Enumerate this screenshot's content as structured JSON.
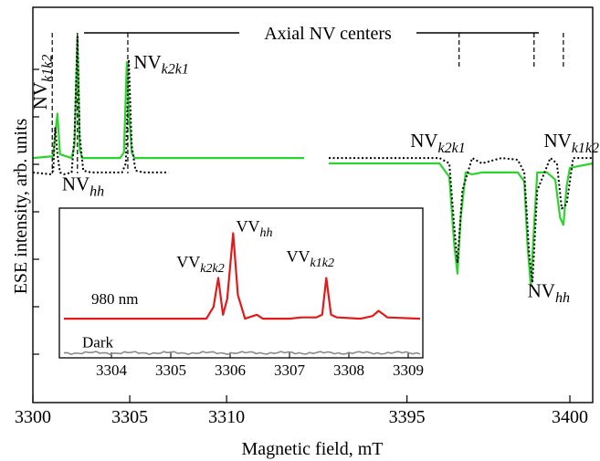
{
  "chart_data": [
    {
      "type": "line",
      "xlabel": "Magnetic field, mT",
      "ylabel": "ESE intensity, arb. units",
      "x_axis": {
        "broken": true,
        "segments": [
          {
            "xlim": [
              3300,
              3314
            ],
            "ticks": [
              3300,
              3305,
              3310
            ],
            "tick_labels": [
              "3300",
              "3305",
              "3310"
            ]
          },
          {
            "xlim": [
              3392.6,
              3400.7
            ],
            "ticks": [
              3395,
              3400
            ],
            "tick_labels": [
              "3395",
              "3400"
            ]
          }
        ]
      },
      "ylim": [
        -1.5,
        2.3
      ],
      "grid": false,
      "header_label": "Axial NV centers",
      "stick_positions": [
        3301.0,
        3302.3,
        3304.9,
        3396.6,
        3398.9,
        3399.8
      ],
      "series": [
        {
          "color": "#2ed32e",
          "style": "solid",
          "segment1_x": [
            3300.0,
            3301.05,
            3301.15,
            3301.27,
            3301.4,
            3302.0,
            3302.15,
            3302.3,
            3302.42,
            3302.55,
            3303.0,
            3304.5,
            3304.7,
            3304.85,
            3304.95,
            3305.1,
            3305.25,
            3305.5,
            3306.5,
            3308.0,
            3310.0,
            3312.0,
            3314.0
          ],
          "segment1_y": [
            0.06,
            0.08,
            0.32,
            0.55,
            0.1,
            0.06,
            0.2,
            1.4,
            0.15,
            0.06,
            0.06,
            0.06,
            0.12,
            1.12,
            0.6,
            0.12,
            0.06,
            0.06,
            0.06,
            0.06,
            0.06,
            0.06,
            0.06
          ],
          "segment2_x": [
            3392.6,
            3394.0,
            3396.0,
            3396.3,
            3396.45,
            3396.55,
            3396.65,
            3396.8,
            3397.0,
            3397.3,
            3397.9,
            3398.4,
            3398.6,
            3398.7,
            3398.8,
            3398.9,
            3399.0,
            3399.3,
            3399.55,
            3399.7,
            3399.8,
            3399.9,
            3400.0,
            3400.7
          ],
          "segment2_y": [
            0.0,
            0.0,
            0.0,
            -0.15,
            -0.9,
            -1.22,
            -0.6,
            -0.1,
            -0.12,
            -0.1,
            -0.1,
            -0.1,
            -0.2,
            -0.9,
            -1.35,
            -0.7,
            -0.1,
            -0.1,
            -0.18,
            -0.6,
            -0.68,
            -0.25,
            -0.05,
            0.0
          ]
        },
        {
          "color": "#000000",
          "style": "dotted",
          "segment1_x": [
            3300.0,
            3300.9,
            3301.05,
            3301.15,
            3301.27,
            3301.4,
            3301.6,
            3302.0,
            3302.15,
            3302.3,
            3302.42,
            3302.6,
            3303.0,
            3304.6,
            3304.8,
            3304.95,
            3305.1,
            3305.3,
            3305.7,
            3306.3,
            3307.0
          ],
          "segment1_y": [
            -0.1,
            -0.12,
            -0.08,
            0.4,
            0.1,
            -0.1,
            -0.12,
            -0.1,
            0.3,
            1.4,
            0.3,
            -0.08,
            -0.1,
            -0.1,
            0.0,
            1.15,
            0.2,
            -0.08,
            -0.1,
            -0.1,
            -0.1
          ],
          "segment2_x": [
            3392.6,
            3395.0,
            3396.0,
            3396.3,
            3396.45,
            3396.55,
            3396.7,
            3397.0,
            3397.3,
            3397.9,
            3398.4,
            3398.6,
            3398.75,
            3398.85,
            3399.0,
            3399.4,
            3399.6,
            3399.75,
            3399.9,
            3400.1,
            3400.7
          ],
          "segment2_y": [
            0.06,
            0.06,
            0.06,
            0.0,
            -0.7,
            -1.1,
            -0.3,
            0.06,
            0.0,
            0.06,
            0.04,
            -0.1,
            -1.0,
            -1.32,
            -0.3,
            0.06,
            0.0,
            -0.5,
            -0.45,
            0.06,
            0.06
          ]
        }
      ],
      "annotations": [
        {
          "base": "NV",
          "sub": "k1k2",
          "x": 3300.7,
          "y": 0.9,
          "rotated": true
        },
        {
          "base": "NV",
          "sub": "k2k1",
          "x": 3305.2,
          "y": 1.05
        },
        {
          "base": "NV",
          "sub": "hh",
          "x": 3301.5,
          "y": -0.3
        },
        {
          "base": "NV",
          "sub": "k2k1",
          "x": 3395.1,
          "y": 0.18
        },
        {
          "base": "NV",
          "sub": "k1k2",
          "x": 3399.2,
          "y": 0.18
        },
        {
          "base": "NV",
          "sub": "hh",
          "x": 3398.7,
          "y": -1.48
        }
      ]
    },
    {
      "type": "line",
      "inset": true,
      "xlim": [
        3303.2,
        3309.2
      ],
      "ylim": [
        -0.2,
        1.0
      ],
      "x_ticks": [
        3304,
        3305,
        3306,
        3307,
        3308,
        3309
      ],
      "x_tick_labels": [
        "3304",
        "3305",
        "3306",
        "3307",
        "3308",
        "3309"
      ],
      "series": [
        {
          "name": "980 nm",
          "color": "#e21a1a",
          "x": [
            3303.2,
            3303.8,
            3304.5,
            3305.2,
            3305.6,
            3305.72,
            3305.8,
            3305.88,
            3305.95,
            3306.05,
            3306.13,
            3306.25,
            3306.45,
            3306.55,
            3306.7,
            3307.0,
            3307.2,
            3307.45,
            3307.55,
            3307.62,
            3307.7,
            3307.8,
            3308.2,
            3308.4,
            3308.5,
            3308.65,
            3309.2
          ],
          "y": [
            0.27,
            0.27,
            0.27,
            0.27,
            0.27,
            0.36,
            0.58,
            0.3,
            0.42,
            0.92,
            0.45,
            0.27,
            0.3,
            0.27,
            0.27,
            0.27,
            0.28,
            0.28,
            0.3,
            0.58,
            0.3,
            0.28,
            0.27,
            0.29,
            0.33,
            0.28,
            0.27
          ]
        },
        {
          "name": "Dark",
          "color": "#8a8a8a",
          "x": [
            3303.2,
            3309.2
          ],
          "y": [
            0.01,
            0.01
          ]
        }
      ],
      "annotations": [
        {
          "base": "VV",
          "sub": "k2k2",
          "x": 3305.5,
          "y": 0.66
        },
        {
          "base": "VV",
          "sub": "hh",
          "x": 3306.1,
          "y": 0.93
        },
        {
          "base": "VV",
          "sub": "k1k2",
          "x": 3307.35,
          "y": 0.7
        }
      ]
    }
  ]
}
